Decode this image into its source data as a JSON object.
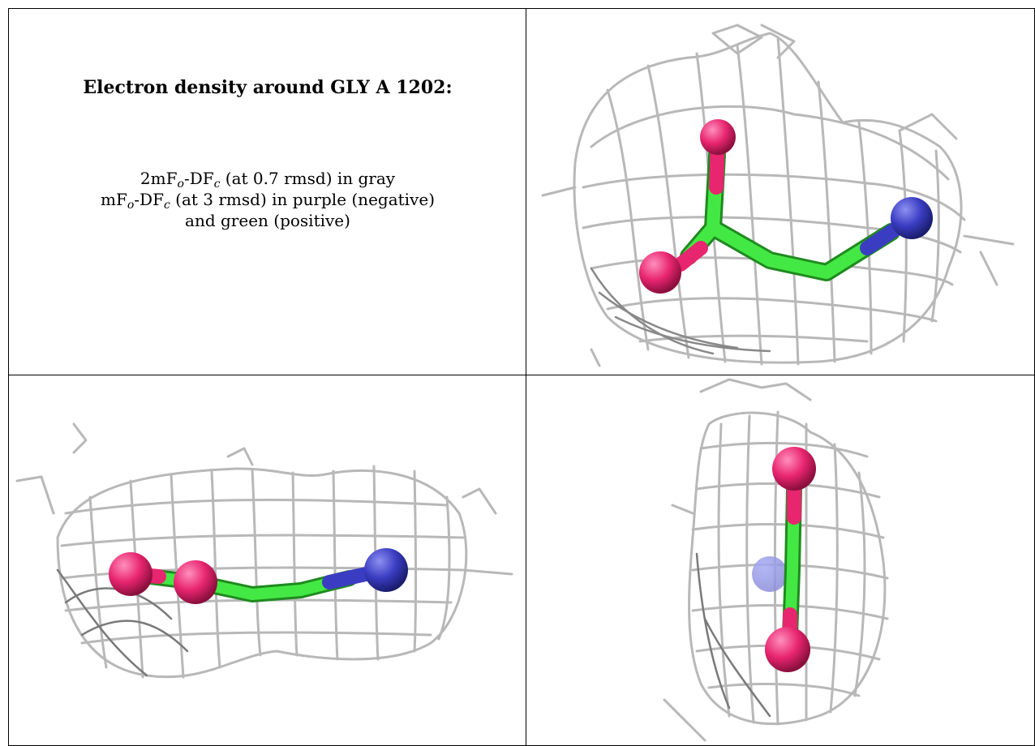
{
  "caption": {
    "title": "Electron density around GLY A 1202:",
    "line1": {
      "pre": "2mF",
      "s1": "o",
      "mid": "-DF",
      "s2": "c",
      "post": " (at 0.7 rmsd) in gray"
    },
    "line2": {
      "pre": "mF",
      "s1": "o",
      "mid": "-DF",
      "s2": "c",
      "post": " (at 3 rmsd) in purple (negative)"
    },
    "line3": "and green (positive)"
  },
  "colors": {
    "mesh": "#b5b5b5",
    "mesh_dark": "#7a7a7a",
    "carbon": "#44e844",
    "oxygen": "#e8256f",
    "nitrogen": "#3a3dc2"
  }
}
